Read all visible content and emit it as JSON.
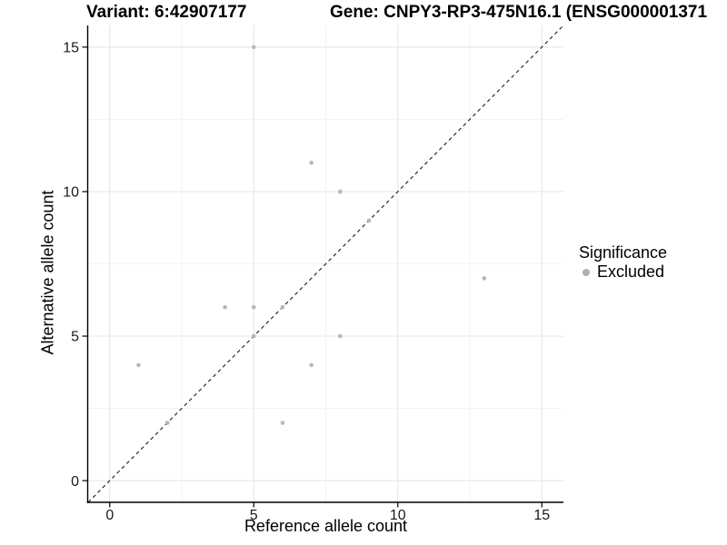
{
  "header": {
    "variant_title": "Variant: 6:42907177",
    "gene_title": "Gene: CNPY3-RP3-475N16.1 (ENSG000001371"
  },
  "axes": {
    "x_label": "Reference allele count",
    "y_label": "Alternative allele count",
    "x_tick_labels": [
      "0",
      "5",
      "10",
      "15"
    ],
    "y_tick_labels": [
      "0",
      "5",
      "10",
      "15"
    ]
  },
  "legend": {
    "title": "Significance",
    "items": [
      {
        "label": "Excluded",
        "color": "#b0b0b0"
      }
    ]
  },
  "chart_data": {
    "type": "scatter",
    "title_left": "Variant: 6:42907177",
    "title_right": "Gene: CNPY3-RP3-475N16.1 (ENSG000001371",
    "xlabel": "Reference allele count",
    "ylabel": "Alternative allele count",
    "xlim": [
      -0.75,
      15.75
    ],
    "ylim": [
      -0.75,
      15.75
    ],
    "x_major_ticks": [
      0,
      5,
      10,
      15
    ],
    "y_major_ticks": [
      0,
      5,
      10,
      15
    ],
    "x_minor_ticks": [
      2.5,
      7.5,
      12.5
    ],
    "y_minor_ticks": [
      2.5,
      7.5,
      12.5
    ],
    "grid": true,
    "legend_position": "right",
    "reference_line": {
      "type": "identity",
      "style": "dashed",
      "from": [
        -0.75,
        -0.75
      ],
      "to": [
        15.75,
        15.75
      ],
      "color": "#1a1a1a"
    },
    "series": [
      {
        "name": "Excluded",
        "color": "#b7b7b7",
        "marker_radius": 2.3,
        "points": [
          [
            1,
            4
          ],
          [
            2,
            2
          ],
          [
            4,
            6
          ],
          [
            5,
            5
          ],
          [
            5,
            6
          ],
          [
            5,
            15
          ],
          [
            6,
            2
          ],
          [
            6,
            6
          ],
          [
            7,
            4
          ],
          [
            7,
            11
          ],
          [
            8,
            5
          ],
          [
            8,
            10
          ],
          [
            9,
            9
          ],
          [
            13,
            7
          ]
        ]
      }
    ]
  },
  "colors": {
    "major_grid": "#e9e9e9",
    "minor_grid": "#f3f3f3",
    "axis_line": "#000000",
    "tick_label": "#1a1a1a",
    "point": "#b7b7b7"
  }
}
